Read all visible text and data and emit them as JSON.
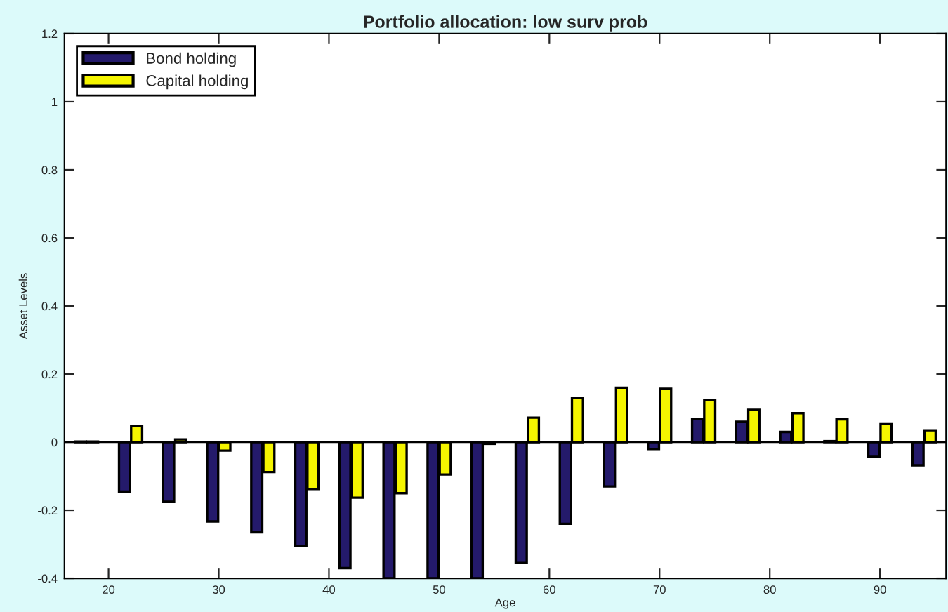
{
  "chart_data": {
    "type": "bar",
    "title": "Portfolio allocation: low surv prob",
    "xlabel": "Age",
    "ylabel": "Asset Levels",
    "x": [
      18,
      22,
      26,
      30,
      34,
      38,
      42,
      46,
      50,
      54,
      58,
      62,
      66,
      70,
      74,
      78,
      82,
      86,
      90,
      94
    ],
    "series": [
      {
        "name": "Bond holding",
        "color": "#241a6b",
        "values": [
          0.002,
          -0.145,
          -0.175,
          -0.233,
          -0.265,
          -0.305,
          -0.37,
          -0.4,
          -0.4,
          -0.4,
          -0.355,
          -0.24,
          -0.13,
          -0.02,
          0.068,
          0.06,
          0.03,
          0.003,
          -0.043,
          -0.068
        ]
      },
      {
        "name": "Capital holding",
        "color": "#f5f500",
        "values": [
          0.002,
          0.048,
          0.008,
          -0.025,
          -0.088,
          -0.138,
          -0.163,
          -0.15,
          -0.095,
          -0.005,
          0.072,
          0.13,
          0.16,
          0.157,
          0.123,
          0.095,
          0.085,
          0.067,
          0.055,
          0.035
        ]
      }
    ],
    "xlim": [
      16,
      96
    ],
    "xticks": [
      20,
      30,
      40,
      50,
      60,
      70,
      80,
      90
    ],
    "ylim": [
      -0.4,
      1.2
    ],
    "yticks": [
      -0.4,
      -0.2,
      0,
      0.2,
      0.4,
      0.6,
      0.8,
      1,
      1.2
    ],
    "ref_lines": [
      {
        "axis": "y",
        "value": 0,
        "color": "#000000"
      }
    ],
    "legend": "top left",
    "grid": false
  }
}
